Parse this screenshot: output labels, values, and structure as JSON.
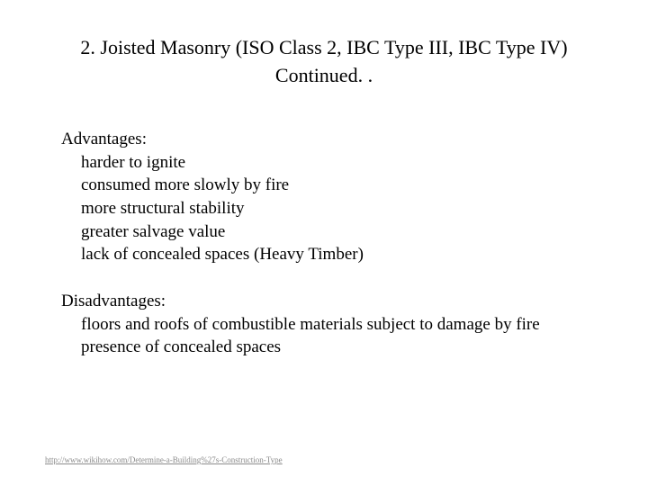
{
  "title_line1": "2. Joisted Masonry (ISO Class 2, IBC Type III, IBC Type IV)",
  "title_line2": "Continued. .",
  "advantages": {
    "label": "Advantages:",
    "items": [
      "harder to ignite",
      "consumed more slowly by fire",
      "more structural stability",
      "greater salvage value",
      "lack of concealed spaces (Heavy Timber)"
    ]
  },
  "disadvantages": {
    "label": "Disadvantages:",
    "items": [
      "floors and roofs of combustible materials subject to damage by fire",
      "presence of concealed spaces"
    ]
  },
  "footer": {
    "text": "http://www.wikihow.com/Determine-a-Building%27s-Construction-Type"
  },
  "style": {
    "background_color": "#ffffff",
    "text_color": "#000000",
    "link_color": "#8a8a8a",
    "title_fontsize": 22,
    "body_fontsize": 19,
    "footer_fontsize": 9,
    "font_family": "Times New Roman"
  }
}
